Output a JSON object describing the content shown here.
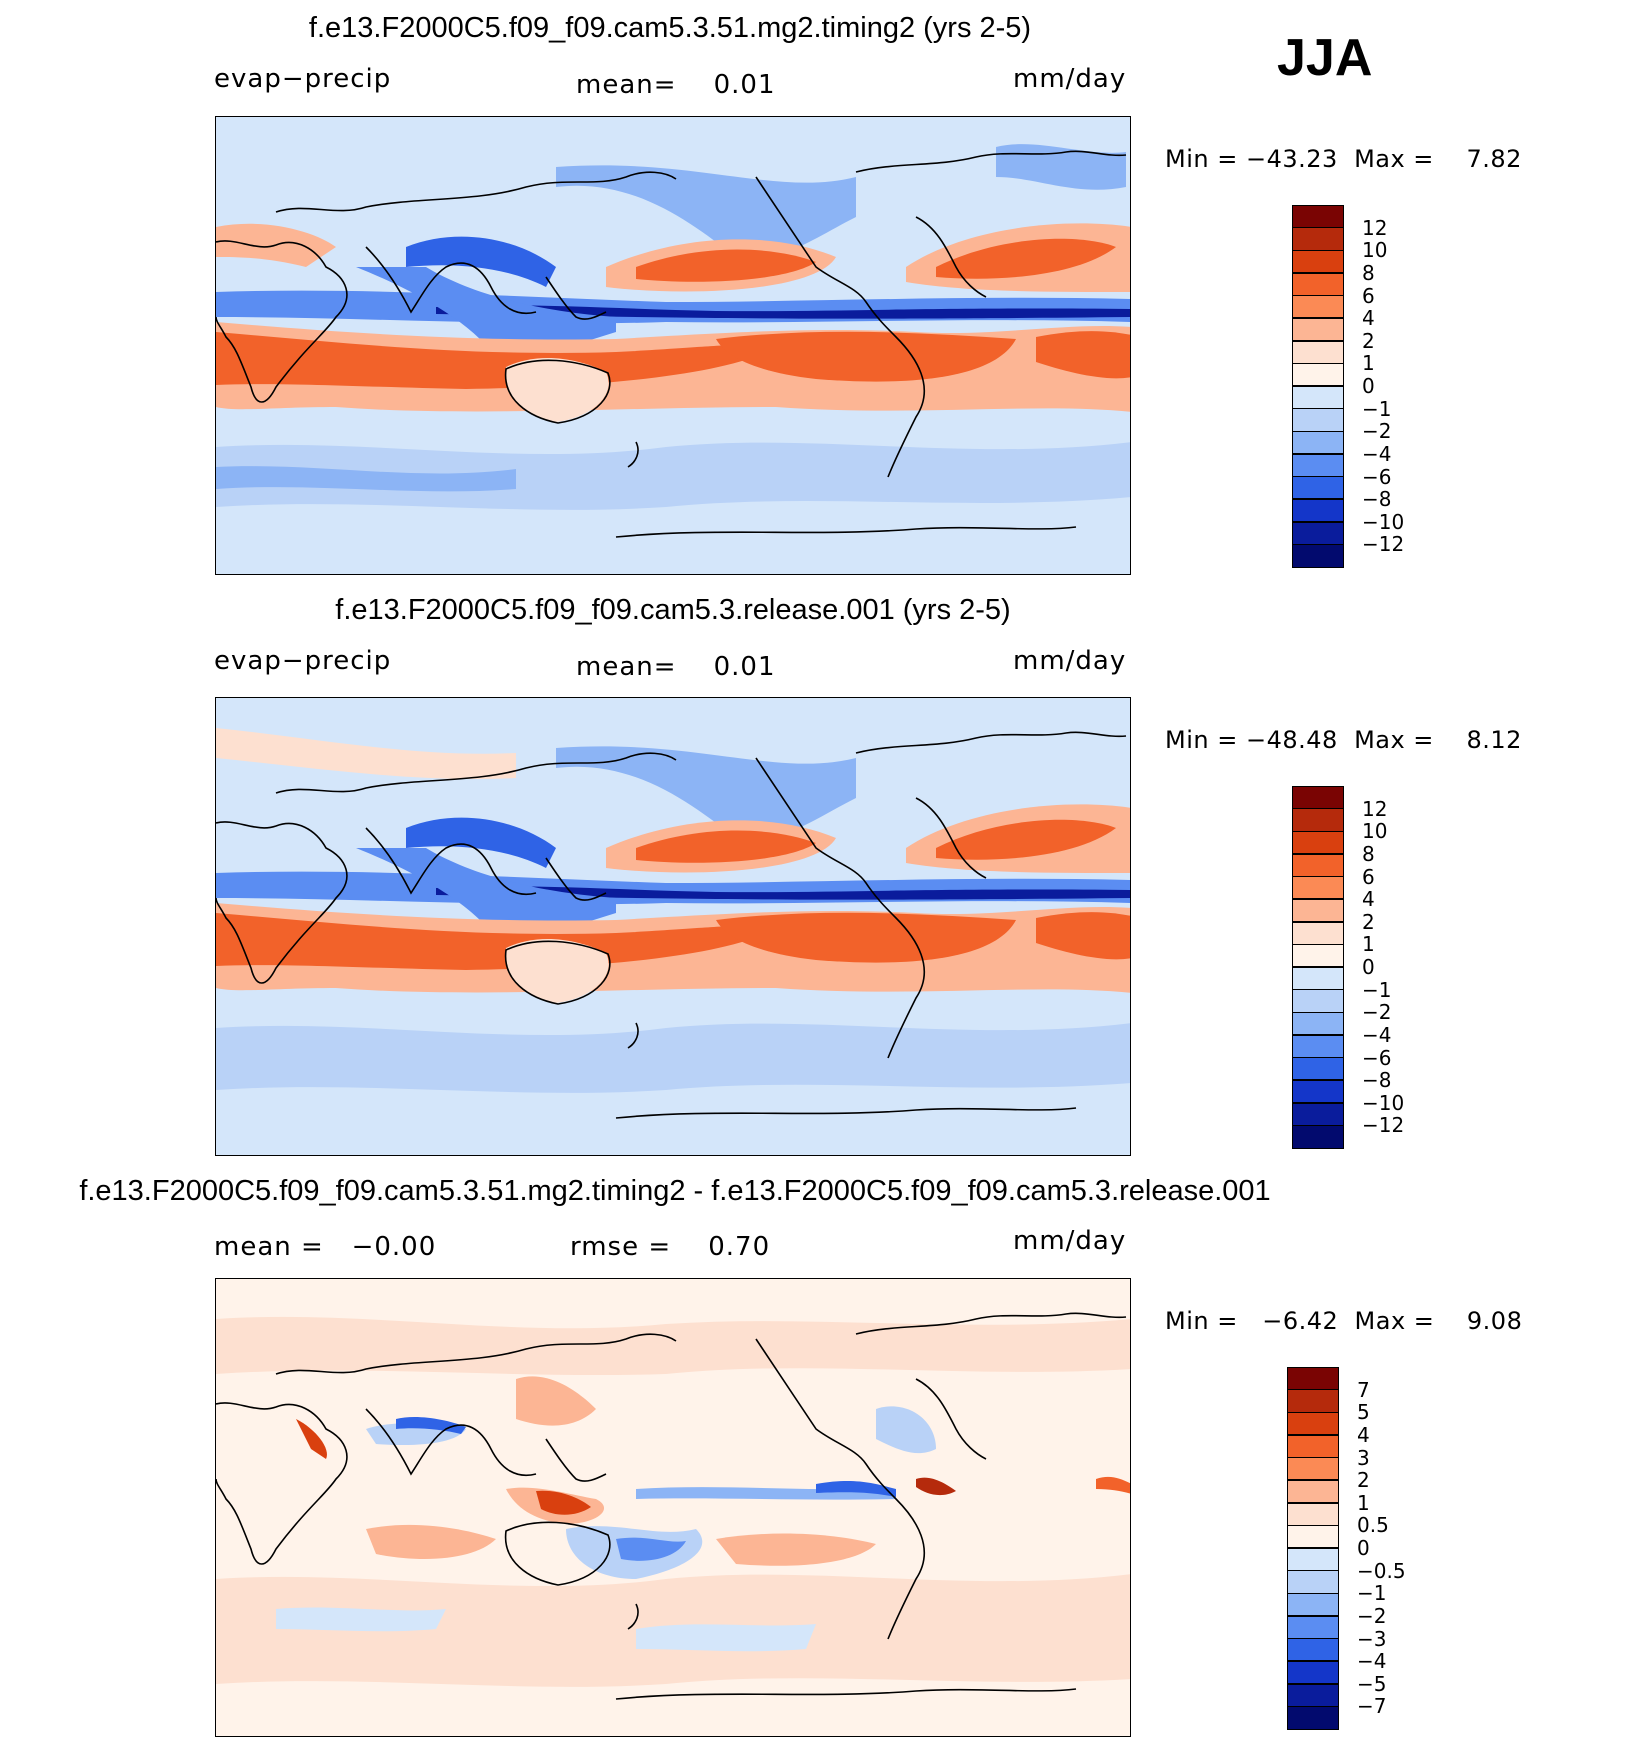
{
  "figure": {
    "season": "JJA",
    "units": "mm/day"
  },
  "panels": [
    {
      "id": "top",
      "title": "f.e13.F2000C5.f09_f09.cam5.3.51.mg2.timing2 (yrs 2-5)",
      "left_label": "evap−precip",
      "mean_label": "mean=",
      "mean_value": "0.01",
      "units": "mm/day",
      "min_label": "Min  =",
      "min_value": "−43.23",
      "max_label": "Max  =",
      "max_value": "7.82",
      "colorbar_labels": [
        "12",
        "10",
        "8",
        "6",
        "4",
        "2",
        "1",
        "0",
        "−1",
        "−2",
        "−4",
        "−6",
        "−8",
        "−10",
        "−12"
      ]
    },
    {
      "id": "middle",
      "title": "f.e13.F2000C5.f09_f09.cam5.3.release.001 (yrs 2-5)",
      "left_label": "evap−precip",
      "mean_label": "mean=",
      "mean_value": "0.01",
      "units": "mm/day",
      "min_label": "Min  =",
      "min_value": "−48.48",
      "max_label": "Max  =",
      "max_value": "8.12",
      "colorbar_labels": [
        "12",
        "10",
        "8",
        "6",
        "4",
        "2",
        "1",
        "0",
        "−1",
        "−2",
        "−4",
        "−6",
        "−8",
        "−10",
        "−12"
      ]
    },
    {
      "id": "bottom",
      "title": "f.e13.F2000C5.f09_f09.cam5.3.51.mg2.timing2 - f.e13.F2000C5.f09_f09.cam5.3.release.001",
      "left_label": "mean  =",
      "left_value": "−0.00",
      "mean_label": "rmse  =",
      "mean_value": "0.70",
      "units": "mm/day",
      "min_label": "Min  =",
      "min_value": "−6.42",
      "max_label": "Max  =",
      "max_value": "9.08",
      "colorbar_labels": [
        "7",
        "5",
        "4",
        "3",
        "2",
        "1",
        "0.5",
        "0",
        "−0.5",
        "−1",
        "−2",
        "−3",
        "−4",
        "−5",
        "−7"
      ]
    }
  ],
  "colorbar_colors": [
    "#7a0403",
    "#b52a0c",
    "#d9400f",
    "#f2622a",
    "#fb8a55",
    "#fcb594",
    "#fde0d0",
    "#fff3ea",
    "#d4e6fa",
    "#b9d2f7",
    "#8cb4f5",
    "#5b8df2",
    "#2f63e6",
    "#1436c9",
    "#0a1c9c",
    "#020a6e"
  ],
  "colors": {
    "ocean_neutral": "#d4e6fa",
    "light_pos": "#fde0d0",
    "mid_pos": "#fcb594",
    "strong_pos": "#f2622a",
    "light_neg": "#b9d2f7",
    "mid_neg": "#5b8df2",
    "strong_neg": "#0a1c9c"
  }
}
